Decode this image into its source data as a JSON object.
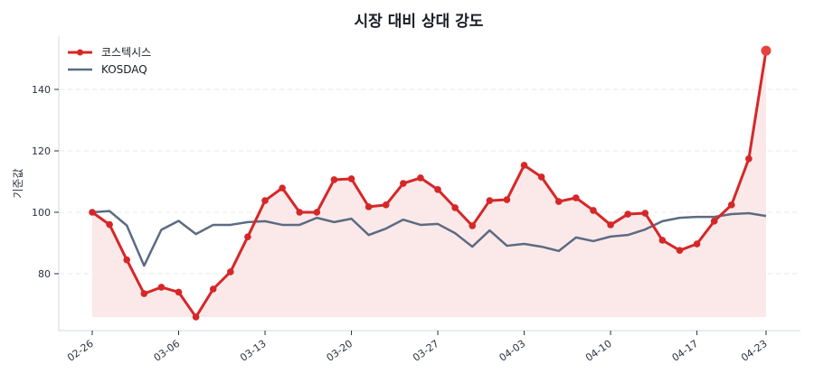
{
  "chart_data": {
    "type": "line",
    "title": "시장 대비 상대 강도",
    "xlabel": "",
    "ylabel": "기준값",
    "ylim": [
      62,
      157
    ],
    "yticks": [
      80,
      100,
      120,
      140
    ],
    "grid": "horizontal-dashed",
    "legend_position": "upper-left",
    "x_tick_labels": [
      {
        "index": 0,
        "label": "02-26"
      },
      {
        "index": 5,
        "label": "03-06"
      },
      {
        "index": 10,
        "label": "03-13"
      },
      {
        "index": 15,
        "label": "03-20"
      },
      {
        "index": 20,
        "label": "03-27"
      },
      {
        "index": 25,
        "label": "04-03"
      },
      {
        "index": 30,
        "label": "04-10"
      },
      {
        "index": 35,
        "label": "04-17"
      },
      {
        "index": 39,
        "label": "04-23"
      }
    ],
    "point_count": 40,
    "series": [
      {
        "name": "코스텍시스",
        "color": "#d62728",
        "marker": "circle",
        "fill": "#fbe9e9",
        "values": [
          100,
          96,
          84.5,
          73.5,
          75.6,
          74,
          65.9,
          75,
          80.6,
          92,
          103.8,
          107.9,
          100,
          100,
          110.6,
          110.9,
          101.8,
          102.4,
          109.4,
          111.2,
          107.4,
          101.5,
          95.6,
          103.8,
          104.1,
          115.3,
          111.5,
          103.5,
          104.7,
          100.6,
          95.9,
          99.4,
          99.7,
          90.9,
          87.6,
          89.7,
          97.1,
          102.4,
          117.4,
          152.6
        ]
      },
      {
        "name": "KOSDAQ",
        "color": "#5c6b82",
        "marker": "none",
        "values": [
          100,
          100.4,
          95.7,
          82.6,
          94.3,
          97.2,
          92.9,
          95.9,
          95.9,
          96.8,
          97.1,
          95.9,
          95.9,
          98.2,
          96.8,
          97.9,
          92.6,
          94.7,
          97.6,
          95.9,
          96.2,
          93.2,
          88.8,
          94.1,
          89.1,
          89.7,
          88.8,
          87.4,
          91.8,
          90.6,
          92.1,
          92.6,
          94.4,
          97.1,
          98.2,
          98.5,
          98.5,
          99.4,
          99.7,
          98.8
        ]
      }
    ]
  }
}
